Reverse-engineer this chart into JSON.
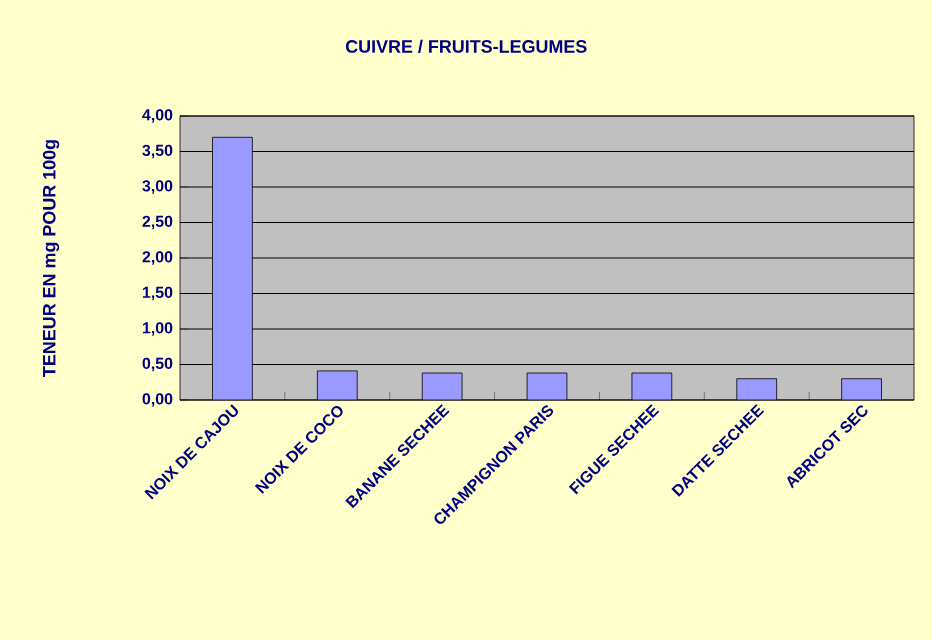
{
  "chart_data": {
    "type": "bar",
    "title": "CUIVRE / FRUITS-LEGUMES",
    "ylabel": "TENEUR EN mg POUR 100g",
    "categories": [
      "NOIX DE CAJOU",
      "NOIX DE COCO",
      "BANANE SECHEE",
      "CHAMPIGNON PARIS",
      "FIGUE SECHEE",
      "DATTE SECHEE",
      "ABRICOT SEC"
    ],
    "values": [
      3.7,
      0.41,
      0.38,
      0.38,
      0.38,
      0.3,
      0.3
    ],
    "color": "#9999ff",
    "ylim": [
      0,
      4
    ],
    "yticks": [
      {
        "value": 0,
        "label": "0,00"
      },
      {
        "value": 0.5,
        "label": "0,50"
      },
      {
        "value": 1,
        "label": "1,00"
      },
      {
        "value": 1.5,
        "label": "1,50"
      },
      {
        "value": 2,
        "label": "2,00"
      },
      {
        "value": 2.5,
        "label": "2,50"
      },
      {
        "value": 3,
        "label": "3,00"
      },
      {
        "value": 3.5,
        "label": "3,50"
      },
      {
        "value": 4,
        "label": "4,00"
      }
    ],
    "grid": "y"
  }
}
